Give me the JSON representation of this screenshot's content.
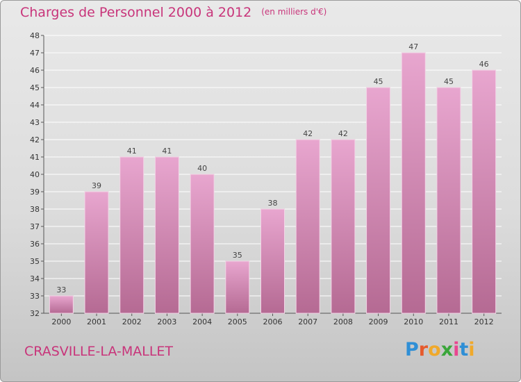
{
  "header": {
    "title": "Charges de Personnel 2000 à 2012",
    "subtitle": "(en milliers d'€)"
  },
  "footer": {
    "commune": "CRASVILLE-LA-MALLET",
    "logo": "Proxiti"
  },
  "colors": {
    "title": "#c8347a",
    "bar_top": "#e8a6cf",
    "bar_bottom": "#b56a93",
    "grid": "#ffffff"
  },
  "chart_data": {
    "type": "bar",
    "title": "Charges de Personnel 2000 à 2012",
    "subtitle": "(en milliers d'€)",
    "xlabel": "",
    "ylabel": "",
    "categories": [
      "2000",
      "2001",
      "2002",
      "2003",
      "2004",
      "2005",
      "2006",
      "2007",
      "2008",
      "2009",
      "2010",
      "2011",
      "2012"
    ],
    "values": [
      33,
      39,
      41,
      41,
      40,
      35,
      38,
      42,
      42,
      45,
      47,
      45,
      46
    ],
    "ylim": [
      32,
      48
    ],
    "yticks": [
      32,
      33,
      34,
      35,
      36,
      37,
      38,
      39,
      40,
      41,
      42,
      43,
      44,
      45,
      46,
      47,
      48
    ],
    "grid": true,
    "data_labels": true
  }
}
